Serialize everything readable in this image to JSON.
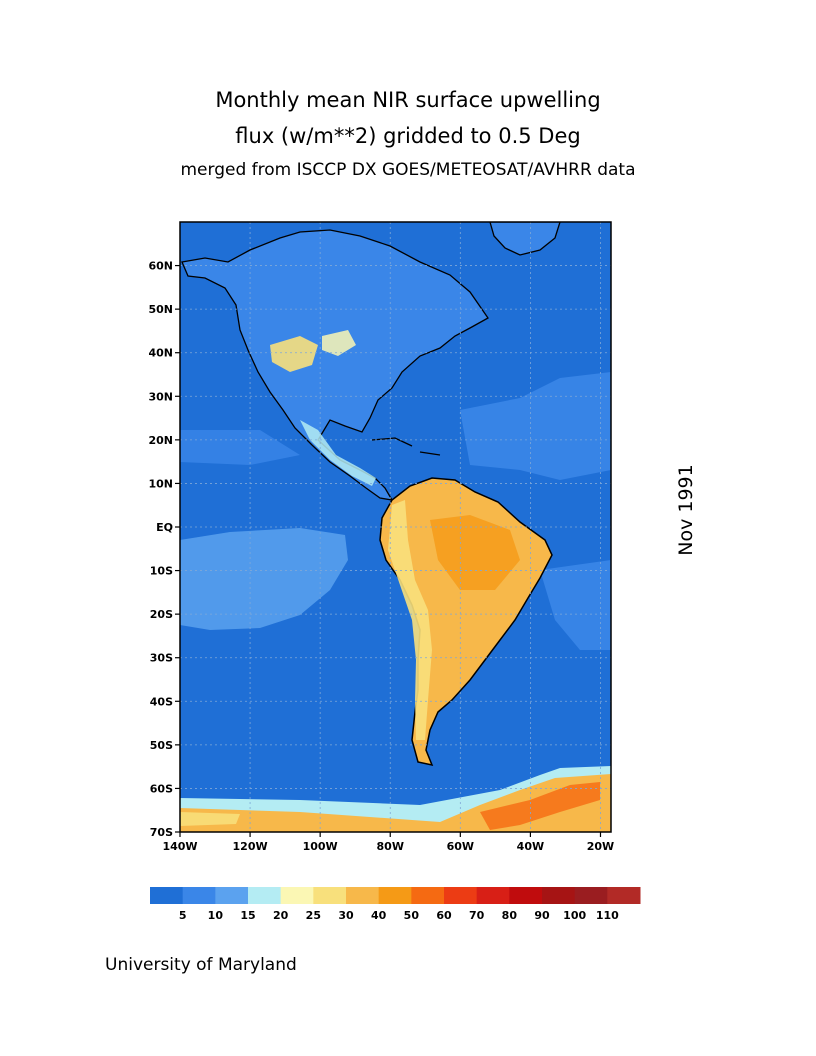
{
  "title": {
    "line1": "Monthly mean NIR surface upwelling",
    "line2": "flux (w/m**2) gridded to 0.5 Deg",
    "line3": "merged from ISCCP DX GOES/METEOSAT/AVHRR data"
  },
  "date_label": "Nov 1991",
  "credit": "University of Maryland",
  "map": {
    "lat_labels": [
      "60N",
      "50N",
      "40N",
      "30N",
      "20N",
      "10N",
      "EQ",
      "10S",
      "20S",
      "30S",
      "40S",
      "50S",
      "60S",
      "70S"
    ],
    "lat_values": [
      60,
      50,
      40,
      30,
      20,
      10,
      0,
      -10,
      -20,
      -30,
      -40,
      -50,
      -60,
      -70
    ],
    "lon_labels": [
      "140W",
      "120W",
      "100W",
      "80W",
      "60W",
      "40W",
      "20W"
    ],
    "lon_values": [
      -140,
      -120,
      -100,
      -80,
      -60,
      -40,
      -20
    ],
    "lat_range": [
      -70,
      70
    ],
    "lon_range": [
      -140,
      -17
    ],
    "grid": true
  },
  "legend": {
    "labels": [
      "5",
      "10",
      "15",
      "20",
      "25",
      "30",
      "40",
      "50",
      "60",
      "70",
      "80",
      "90",
      "100",
      "110"
    ],
    "colors": [
      "#1f6fd6",
      "#3a86e8",
      "#5ba2ef",
      "#b4ecf3",
      "#fbf7b4",
      "#f8e07c",
      "#f7b84a",
      "#f59a16",
      "#f56a12",
      "#ec3c14",
      "#d81f16",
      "#c00c0d",
      "#a61414",
      "#9a1d20",
      "#b22a26"
    ]
  },
  "colors": {
    "ocean": "#1f6fd6",
    "land_north": "#3a86e8",
    "land_south": "#f7b84a",
    "coast": "#000000"
  }
}
